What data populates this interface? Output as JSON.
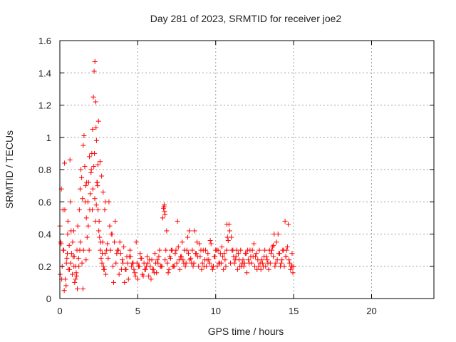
{
  "chart_data": {
    "type": "scatter",
    "title": "Day 281 of 2023, SRMTID for receiver joe2",
    "xlabel": "GPS time / hours",
    "ylabel": "SRMTID / TECUs",
    "xlim": [
      0,
      24
    ],
    "ylim": [
      0,
      1.6
    ],
    "xticks": [
      0,
      5,
      10,
      15,
      20
    ],
    "xtick_labels": [
      "0",
      "5",
      "10",
      "15",
      "20"
    ],
    "yticks": [
      0,
      0.2,
      0.4,
      0.6,
      0.8,
      1,
      1.2,
      1.4,
      1.6
    ],
    "ytick_labels": [
      "0",
      "0.2",
      "0.4",
      "0.6",
      "0.8",
      "1",
      "1.2",
      "1.4",
      "1.6"
    ],
    "grid": true,
    "marker": "plus",
    "color": "#ff0000",
    "series": [
      {
        "name": "SRMTID",
        "x": [
          0.0,
          0.05,
          0.1,
          0.15,
          0.2,
          0.25,
          0.3,
          0.35,
          0.4,
          0.45,
          0.5,
          0.55,
          0.6,
          0.65,
          0.7,
          0.75,
          0.8,
          0.85,
          0.9,
          0.95,
          1.0,
          1.05,
          1.1,
          1.15,
          1.2,
          1.25,
          1.3,
          1.35,
          1.4,
          1.45,
          1.5,
          1.55,
          1.6,
          1.65,
          1.7,
          1.75,
          1.8,
          1.85,
          1.9,
          1.95,
          2.0,
          2.05,
          2.1,
          2.15,
          2.2,
          2.25,
          2.3,
          2.35,
          2.4,
          2.45,
          2.5,
          2.55,
          2.6,
          2.65,
          2.7,
          2.75,
          2.8,
          2.85,
          2.9,
          2.95,
          3.0,
          3.1,
          3.2,
          3.3,
          3.4,
          3.5,
          3.6,
          3.7,
          3.8,
          3.9,
          4.0,
          4.1,
          4.2,
          4.3,
          4.4,
          4.5,
          4.6,
          4.7,
          4.8,
          4.9,
          5.0,
          5.1,
          5.2,
          5.3,
          5.4,
          5.5,
          5.6,
          5.7,
          5.8,
          5.9,
          6.0,
          6.1,
          6.2,
          6.3,
          6.4,
          6.5,
          6.6,
          6.65,
          6.7,
          6.75,
          6.8,
          6.9,
          7.0,
          7.1,
          7.2,
          7.3,
          7.4,
          7.5,
          7.6,
          7.7,
          7.8,
          7.9,
          8.0,
          8.1,
          8.2,
          8.3,
          8.4,
          8.5,
          8.6,
          8.7,
          8.8,
          8.9,
          9.0,
          9.1,
          9.2,
          9.3,
          9.4,
          9.5,
          9.6,
          9.7,
          9.8,
          9.9,
          10.0,
          10.1,
          10.2,
          10.3,
          10.4,
          10.5,
          10.6,
          10.7,
          10.8,
          10.9,
          11.0,
          11.1,
          11.2,
          11.3,
          11.4,
          11.5,
          11.6,
          11.7,
          11.8,
          11.9,
          12.0,
          12.1,
          12.2,
          12.3,
          12.4,
          12.5,
          12.6,
          12.7,
          12.8,
          12.9,
          13.0,
          13.1,
          13.2,
          13.3,
          13.4,
          13.5,
          13.6,
          13.7,
          13.8,
          13.9,
          14.0,
          14.1,
          14.2,
          14.3,
          14.4,
          14.5,
          14.6,
          14.7,
          14.8,
          14.9,
          15.0,
          0.02,
          0.12,
          0.22,
          0.32,
          0.42,
          0.52,
          0.62,
          0.72,
          0.82,
          0.92,
          1.02,
          1.12,
          1.22,
          1.32,
          1.42,
          1.52,
          1.62,
          1.72,
          1.82,
          1.92,
          2.02,
          2.12,
          2.22,
          2.32,
          2.42,
          2.52,
          2.62,
          2.72,
          2.82,
          2.92,
          3.05,
          3.25,
          3.45,
          3.65,
          3.85,
          4.05,
          4.25,
          4.45,
          4.65,
          4.85,
          5.05,
          5.25,
          5.45,
          5.65,
          5.85,
          6.05,
          6.25,
          6.45,
          6.68,
          6.72,
          6.85,
          7.05,
          7.25,
          7.45,
          7.65,
          7.85,
          8.05,
          8.25,
          8.45,
          8.65,
          8.85,
          9.05,
          9.25,
          9.45,
          9.65,
          9.85,
          10.05,
          10.25,
          10.45,
          10.65,
          10.75,
          10.85,
          11.05,
          11.25,
          11.45,
          11.65,
          11.85,
          12.05,
          12.25,
          12.45,
          12.65,
          12.85,
          13.05,
          13.25,
          13.45,
          13.65,
          13.75,
          13.85,
          14.05,
          14.25,
          14.45,
          14.55,
          14.65,
          14.85,
          14.95,
          0.08,
          0.28,
          0.48,
          0.68,
          0.88,
          1.08,
          1.28,
          1.48,
          1.68,
          1.88,
          2.08,
          2.18,
          2.24,
          2.28,
          2.34,
          2.38,
          2.44,
          2.48,
          2.58,
          2.68,
          2.78,
          2.88,
          3.15,
          3.35,
          3.55,
          3.75,
          3.95,
          4.15,
          4.35,
          4.55,
          4.75,
          4.95,
          5.15,
          5.35,
          5.55,
          5.75,
          5.95,
          6.15,
          6.35,
          6.55,
          6.75,
          6.95,
          7.15,
          7.35,
          7.55,
          7.75,
          7.95,
          8.15,
          8.35,
          8.55,
          8.75,
          8.95,
          9.15,
          9.35,
          9.55,
          9.75,
          9.95,
          10.15,
          10.35,
          10.55,
          10.72,
          10.95,
          11.15,
          11.35,
          11.55,
          11.75,
          11.95,
          12.15,
          12.35,
          12.55,
          12.75,
          12.95,
          13.15,
          13.35,
          13.55,
          13.7,
          13.95,
          14.15,
          14.35,
          14.5,
          14.75,
          14.9
        ],
        "y": [
          0.45,
          0.35,
          0.68,
          0.2,
          0.55,
          0.3,
          0.84,
          0.12,
          0.08,
          0.25,
          0.4,
          0.18,
          0.33,
          0.86,
          0.22,
          0.28,
          0.15,
          0.26,
          0.2,
          0.1,
          0.12,
          0.16,
          0.3,
          0.45,
          0.25,
          0.55,
          0.68,
          0.8,
          0.75,
          0.62,
          0.95,
          1.01,
          0.82,
          0.7,
          0.5,
          0.38,
          0.6,
          0.72,
          0.88,
          0.65,
          0.78,
          0.9,
          1.05,
          1.25,
          1.41,
          1.47,
          1.22,
          0.98,
          0.72,
          0.55,
          0.42,
          0.38,
          0.3,
          0.25,
          0.22,
          0.35,
          0.2,
          0.18,
          0.28,
          0.15,
          0.3,
          0.25,
          0.45,
          0.4,
          0.2,
          0.35,
          0.22,
          0.3,
          0.15,
          0.28,
          0.24,
          0.32,
          0.18,
          0.26,
          0.12,
          0.3,
          0.2,
          0.22,
          0.16,
          0.35,
          0.12,
          0.2,
          0.25,
          0.15,
          0.22,
          0.18,
          0.26,
          0.14,
          0.2,
          0.24,
          0.18,
          0.28,
          0.16,
          0.22,
          0.3,
          0.2,
          0.5,
          0.56,
          0.58,
          0.52,
          0.3,
          0.22,
          0.18,
          0.25,
          0.3,
          0.2,
          0.28,
          0.22,
          0.32,
          0.18,
          0.26,
          0.24,
          0.3,
          0.22,
          0.38,
          0.42,
          0.25,
          0.3,
          0.22,
          0.28,
          0.35,
          0.2,
          0.26,
          0.18,
          0.3,
          0.24,
          0.2,
          0.28,
          0.22,
          0.34,
          0.18,
          0.26,
          0.3,
          0.2,
          0.22,
          0.28,
          0.32,
          0.18,
          0.24,
          0.3,
          0.36,
          0.42,
          0.38,
          0.3,
          0.22,
          0.26,
          0.18,
          0.24,
          0.3,
          0.22,
          0.2,
          0.28,
          0.16,
          0.24,
          0.3,
          0.22,
          0.26,
          0.2,
          0.28,
          0.24,
          0.3,
          0.18,
          0.22,
          0.26,
          0.2,
          0.24,
          0.18,
          0.22,
          0.3,
          0.26,
          0.2,
          0.35,
          0.4,
          0.28,
          0.22,
          0.3,
          0.2,
          0.26,
          0.32,
          0.24,
          0.18,
          0.28,
          0.2,
          0.15,
          0.12,
          0.3,
          0.55,
          0.22,
          0.48,
          0.18,
          0.42,
          0.35,
          0.26,
          0.2,
          0.06,
          0.2,
          0.35,
          0.22,
          0.3,
          0.6,
          0.72,
          0.45,
          0.55,
          0.8,
          0.68,
          0.9,
          1.06,
          0.7,
          0.48,
          0.35,
          0.28,
          0.18,
          0.6,
          0.34,
          0.3,
          0.1,
          0.28,
          0.35,
          0.22,
          0.18,
          0.26,
          0.22,
          0.14,
          0.2,
          0.25,
          0.18,
          0.22,
          0.12,
          0.16,
          0.24,
          0.2,
          0.57,
          0.54,
          0.42,
          0.26,
          0.2,
          0.3,
          0.24,
          0.35,
          0.2,
          0.28,
          0.22,
          0.42,
          0.26,
          0.3,
          0.2,
          0.24,
          0.36,
          0.2,
          0.3,
          0.22,
          0.26,
          0.2,
          0.38,
          0.46,
          0.3,
          0.24,
          0.28,
          0.2,
          0.22,
          0.3,
          0.26,
          0.34,
          0.18,
          0.22,
          0.2,
          0.26,
          0.3,
          0.32,
          0.4,
          0.22,
          0.28,
          0.24,
          0.48,
          0.3,
          0.46,
          0.2,
          0.16,
          0.34,
          0.05,
          0.28,
          0.6,
          0.42,
          0.14,
          0.3,
          0.06,
          0.24,
          0.3,
          0.55,
          0.82,
          0.62,
          0.48,
          0.58,
          0.72,
          0.83,
          1.1,
          0.85,
          0.76,
          0.66,
          0.55,
          0.6,
          0.4,
          0.48,
          0.3,
          0.18,
          0.1,
          0.22,
          0.26,
          0.18,
          0.22,
          0.28,
          0.14,
          0.2,
          0.24,
          0.18,
          0.22,
          0.26,
          0.2,
          0.24,
          0.16,
          0.3,
          0.2,
          0.48,
          0.26,
          0.22,
          0.3,
          0.24,
          0.2,
          0.28,
          0.34,
          0.22,
          0.3,
          0.24,
          0.2,
          0.26,
          0.3,
          0.22,
          0.28,
          0.46,
          0.22,
          0.26,
          0.3,
          0.2,
          0.24,
          0.28,
          0.22,
          0.3,
          0.26,
          0.2,
          0.24,
          0.3,
          0.22,
          0.28,
          0.33,
          0.24,
          0.2,
          0.3,
          0.26,
          0.22,
          0.2
        ]
      }
    ]
  }
}
